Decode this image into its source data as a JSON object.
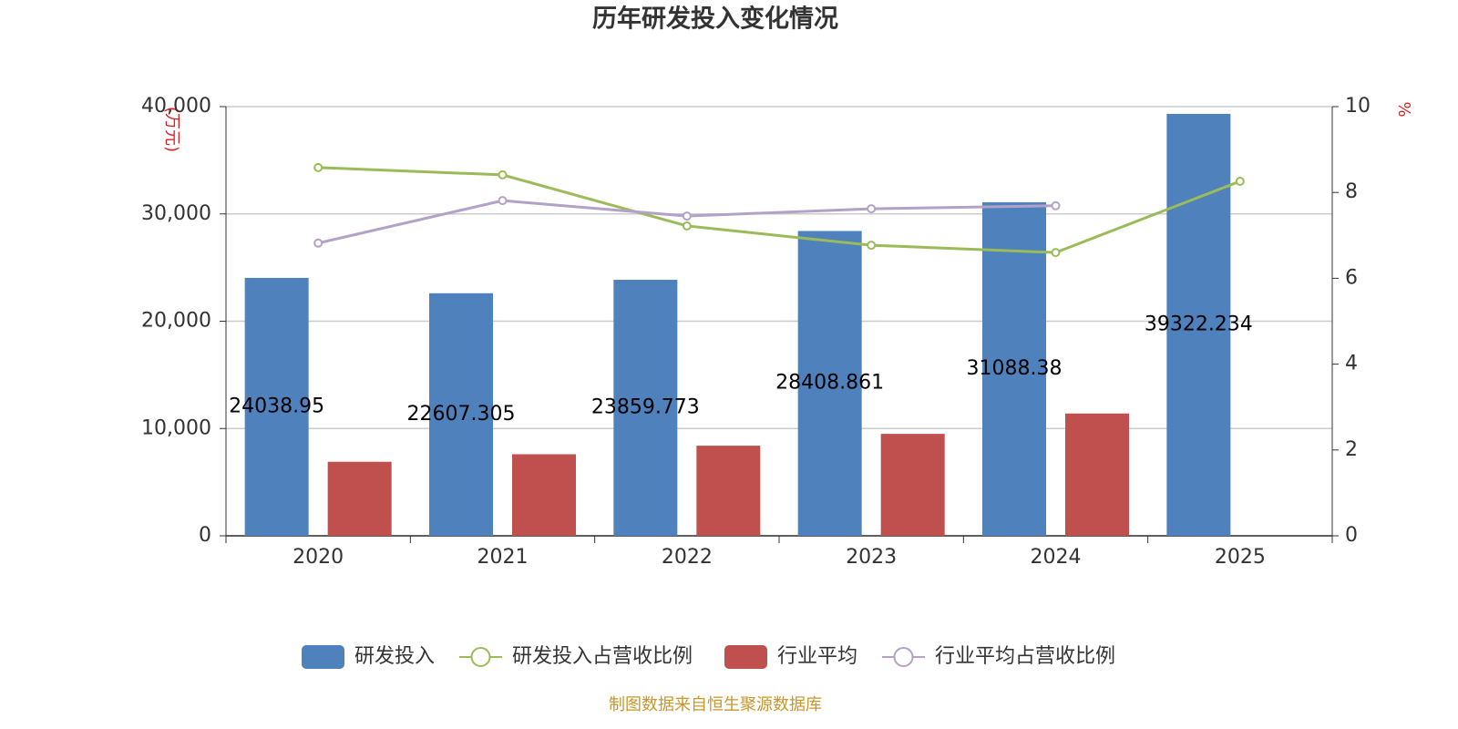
{
  "chart_data": {
    "type": "bar",
    "title": "历年研发投入变化情况",
    "y_label": "(万元)",
    "y2_label": "%",
    "source": "制图数据来自恒生聚源数据库",
    "categories": [
      "2020",
      "2021",
      "2022",
      "2023",
      "2024",
      "2025"
    ],
    "series": [
      {
        "name": "研发投入",
        "type": "bar",
        "color": "#4f81bd",
        "values": [
          24038.95,
          22607.305,
          23859.773,
          28408.861,
          31088.38,
          39322.234
        ],
        "data_labels": true
      },
      {
        "name": "研发投入占营收比例",
        "type": "line",
        "axis": "y2",
        "color": "#9bbb59",
        "values": [
          8.58,
          8.41,
          7.22,
          6.77,
          6.6,
          8.26
        ]
      },
      {
        "name": "行业平均",
        "type": "bar",
        "color": "#c0504d",
        "values": [
          6900,
          7600,
          8400,
          9500,
          11400,
          null
        ]
      },
      {
        "name": "行业平均占营收比例",
        "type": "line",
        "axis": "y2",
        "color": "#b3a2c7",
        "values": [
          6.82,
          7.81,
          7.45,
          7.62,
          7.69,
          null
        ]
      }
    ],
    "ylim": [
      0,
      40000
    ],
    "yticks": [
      0,
      {
        "value": 10000,
        "label": "10,000"
      },
      {
        "value": 20000,
        "label": "20,000"
      },
      {
        "value": 30000,
        "label": "30,000"
      },
      {
        "value": 40000,
        "label": "40,000"
      }
    ],
    "y2lim": [
      0,
      10
    ],
    "y2ticks": [
      0,
      2,
      4,
      6,
      8,
      10
    ],
    "grid": true,
    "legend": "bottom"
  }
}
